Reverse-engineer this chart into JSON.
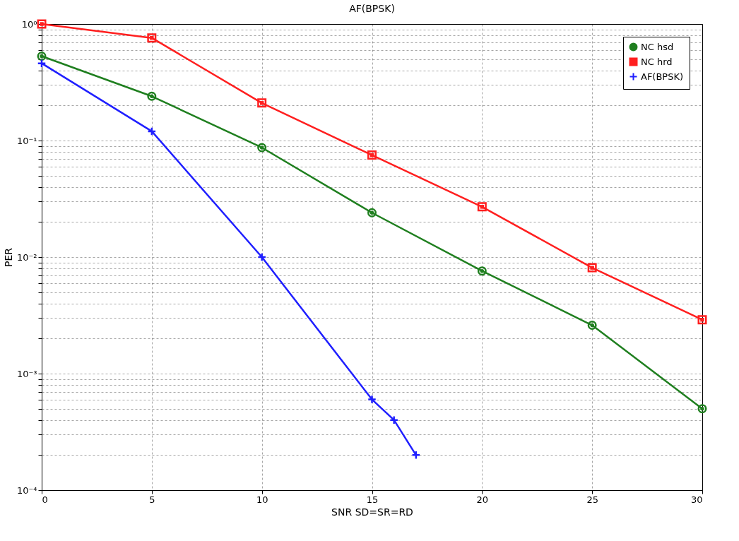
{
  "chart_data": {
    "type": "line",
    "title": "AF(BPSK)",
    "xlabel": "SNR SD=SR=RD",
    "ylabel": "PER",
    "log": "y",
    "grid": true,
    "legend": "top right",
    "line_style": "solid",
    "xlim": [
      0,
      30
    ],
    "xticks": [
      0,
      5,
      10,
      15,
      20,
      25,
      30
    ],
    "ylim": [
      0.0001,
      1
    ],
    "yticks": [
      {
        "value": 0.0001,
        "label": "10⁻⁴"
      },
      {
        "value": 0.0002,
        "label": null
      },
      {
        "value": 0.0003,
        "label": null
      },
      {
        "value": 0.0004,
        "label": null
      },
      {
        "value": 0.0005,
        "label": null
      },
      {
        "value": 0.0006,
        "label": null
      },
      {
        "value": 0.0007,
        "label": null
      },
      {
        "value": 0.0008,
        "label": null
      },
      {
        "value": 0.0009,
        "label": null
      },
      {
        "value": 0.001,
        "label": "10⁻³"
      },
      {
        "value": 0.002,
        "label": null
      },
      {
        "value": 0.003,
        "label": null
      },
      {
        "value": 0.004,
        "label": null
      },
      {
        "value": 0.005,
        "label": null
      },
      {
        "value": 0.006,
        "label": null
      },
      {
        "value": 0.007,
        "label": null
      },
      {
        "value": 0.008,
        "label": null
      },
      {
        "value": 0.009,
        "label": null
      },
      {
        "value": 0.01,
        "label": "10⁻²"
      },
      {
        "value": 0.02,
        "label": null
      },
      {
        "value": 0.03,
        "label": null
      },
      {
        "value": 0.04,
        "label": null
      },
      {
        "value": 0.05,
        "label": null
      },
      {
        "value": 0.06,
        "label": null
      },
      {
        "value": 0.07,
        "label": null
      },
      {
        "value": 0.08,
        "label": null
      },
      {
        "value": 0.09,
        "label": null
      },
      {
        "value": 0.1,
        "label": "10⁻¹"
      },
      {
        "value": 0.2,
        "label": null
      },
      {
        "value": 0.3,
        "label": null
      },
      {
        "value": 0.4,
        "label": null
      },
      {
        "value": 0.5,
        "label": null
      },
      {
        "value": 0.6,
        "label": null
      },
      {
        "value": 0.7,
        "label": null
      },
      {
        "value": 0.8,
        "label": null
      },
      {
        "value": 0.9,
        "label": null
      },
      {
        "value": 1,
        "label": "10⁰"
      }
    ],
    "x": [
      0,
      5,
      10,
      15,
      20,
      25,
      30
    ],
    "series": [
      {
        "name": "NC hsd",
        "color": "#1f7f1f",
        "marker": "circle",
        "values": [
          0.53,
          0.24,
          0.087,
          0.024,
          0.0076,
          0.0026,
          0.0005
        ]
      },
      {
        "name": "NC hrd",
        "color": "#ff1f1f",
        "marker": "square",
        "values": [
          1.0,
          0.76,
          0.21,
          0.075,
          0.027,
          0.0081,
          0.0029
        ]
      },
      {
        "name": "AF(BPSK)",
        "color": "#1f1fff",
        "marker": "cross",
        "x": [
          0,
          5,
          10,
          15,
          16,
          17
        ],
        "values": [
          0.46,
          0.12,
          0.01,
          0.0006,
          0.0004,
          0.0002
        ]
      }
    ]
  }
}
